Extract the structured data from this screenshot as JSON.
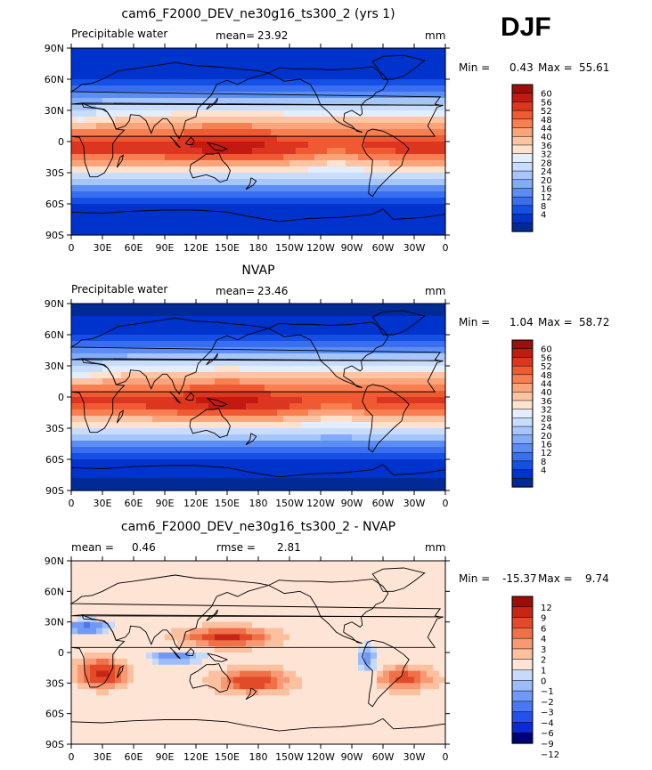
{
  "season": "DJF",
  "colors": {
    "abs": [
      "#002b96",
      "#0033cc",
      "#1450e6",
      "#3a6ef0",
      "#5c8df5",
      "#82abf8",
      "#a6c6fa",
      "#c8dcfb",
      "#e3edfc",
      "#fde3cf",
      "#fcc4a3",
      "#fba37b",
      "#f77f52",
      "#ef5a33",
      "#dd3620",
      "#c21a10",
      "#9c0f0a"
    ],
    "diff": [
      "#00007a",
      "#0a2ad4",
      "#2252e8",
      "#4a77f2",
      "#7099f6",
      "#9bbcf9",
      "#c6dafb",
      "#fde4d4",
      "#fbc0a0",
      "#f79a74",
      "#f07148",
      "#e24a2a",
      "#c82615",
      "#9c0d08"
    ]
  },
  "chart_data": [
    {
      "type": "contour-map",
      "title": "cam6_F2000_DEV_ne30g16_ts300_2 (yrs 1)",
      "left_label": "Precipitable water",
      "mean_label": "mean=",
      "mean_value": "23.92",
      "units": "mm",
      "min_label": "Min =",
      "min_value": "0.43",
      "max_label": "Max =",
      "max_value": "55.61",
      "x_ticks": [
        "0",
        "30E",
        "60E",
        "90E",
        "120E",
        "150E",
        "180",
        "150W",
        "120W",
        "90W",
        "60W",
        "30W",
        "0"
      ],
      "y_ticks": [
        "90N",
        "60N",
        "30N",
        "0",
        "30S",
        "60S",
        "90S"
      ],
      "colorbar_levels": [
        "60",
        "56",
        "52",
        "48",
        "44",
        "40",
        "36",
        "32",
        "28",
        "24",
        "20",
        "16",
        "12",
        "8",
        "4"
      ]
    },
    {
      "type": "contour-map",
      "title": "NVAP",
      "left_label": "Precipitable water",
      "mean_label": "mean=",
      "mean_value": "23.46",
      "units": "mm",
      "min_label": "Min =",
      "min_value": "1.04",
      "max_label": "Max =",
      "max_value": "58.72",
      "x_ticks": [
        "0",
        "30E",
        "60E",
        "90E",
        "120E",
        "150E",
        "180",
        "150W",
        "120W",
        "90W",
        "60W",
        "30W",
        "0"
      ],
      "y_ticks": [
        "90N",
        "60N",
        "30N",
        "0",
        "30S",
        "60S",
        "90S"
      ],
      "colorbar_levels": [
        "60",
        "56",
        "52",
        "48",
        "44",
        "40",
        "36",
        "32",
        "28",
        "24",
        "20",
        "16",
        "12",
        "8",
        "4"
      ]
    },
    {
      "type": "contour-map",
      "title": "cam6_F2000_DEV_ne30g16_ts300_2 - NVAP",
      "left_label": "mean =",
      "mean_label": "",
      "mean_value": "0.46",
      "rmse_label": "rmse =",
      "rmse_value": "2.81",
      "units": "mm",
      "min_label": "Min =",
      "min_value": "-15.37",
      "max_label": "Max =",
      "max_value": "9.74",
      "x_ticks": [
        "0",
        "30E",
        "60E",
        "90E",
        "120E",
        "150E",
        "180",
        "150W",
        "120W",
        "90W",
        "60W",
        "30W",
        "0"
      ],
      "y_ticks": [
        "90N",
        "60N",
        "30N",
        "0",
        "30S",
        "60S",
        "90S"
      ],
      "colorbar_levels": [
        "12",
        "9",
        "6",
        "4",
        "3",
        "2",
        "1",
        "0",
        "−1",
        "−2",
        "−3",
        "−4",
        "−6",
        "−9",
        "−12"
      ]
    }
  ]
}
